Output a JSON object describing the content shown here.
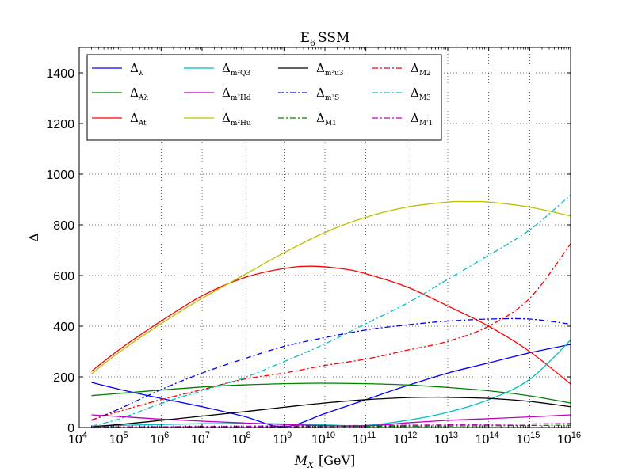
{
  "chart_data": {
    "type": "line",
    "title": "E6 SSM",
    "title_main": "E",
    "title_sub": "6",
    "title_rest": "SSM",
    "xlabel_main": "M",
    "xlabel_sub": "X",
    "xlabel_rest": "[GeV]",
    "ylabel": "Δ",
    "x_scale": "log10",
    "xlim": [
      10000.0,
      1e+16
    ],
    "ylim": [
      0,
      1500
    ],
    "x_ticks": [
      {
        "exp": "4",
        "value": 10000.0
      },
      {
        "exp": "5",
        "value": 100000.0
      },
      {
        "exp": "6",
        "value": 1000000.0
      },
      {
        "exp": "7",
        "value": 10000000.0
      },
      {
        "exp": "8",
        "value": 100000000.0
      },
      {
        "exp": "9",
        "value": 1000000000.0
      },
      {
        "exp": "10",
        "value": 10000000000.0
      },
      {
        "exp": "11",
        "value": 100000000000.0
      },
      {
        "exp": "12",
        "value": 1000000000000.0
      },
      {
        "exp": "13",
        "value": 10000000000000.0
      },
      {
        "exp": "14",
        "value": 100000000000000.0
      },
      {
        "exp": "15",
        "value": 1000000000000000.0
      },
      {
        "exp": "16",
        "value": 1e+16
      }
    ],
    "x_tick_base": "10",
    "y_ticks": [
      "0",
      "200",
      "400",
      "600",
      "800",
      "1000",
      "1200",
      "1400"
    ],
    "grid": true,
    "legend_position": "top-left",
    "series": [
      {
        "name": "Δλ",
        "label_main": "Δ",
        "label_sub": "λ",
        "color": "#0000ff",
        "dash": "solid",
        "x": [
          4.3,
          5,
          6,
          7,
          8,
          9,
          10,
          11,
          12,
          13,
          14,
          15,
          16
        ],
        "y": [
          178,
          150,
          115,
          82,
          45,
          3,
          55,
          110,
          165,
          215,
          255,
          295,
          328
        ]
      },
      {
        "name": "ΔAλ",
        "label_main": "Δ",
        "label_sub": "Aλ",
        "color": "#008000",
        "dash": "solid",
        "x": [
          4.3,
          5,
          6,
          7,
          8,
          9,
          10,
          11,
          12,
          13,
          14,
          15,
          16
        ],
        "y": [
          126,
          135,
          148,
          160,
          168,
          173,
          175,
          173,
          168,
          158,
          145,
          125,
          97
        ]
      },
      {
        "name": "ΔAt",
        "label_main": "Δ",
        "label_sub": "At",
        "color": "#ff0000",
        "dash": "solid",
        "x": [
          4.3,
          5,
          6,
          7,
          8,
          9,
          9.7,
          10.5,
          11,
          12,
          13,
          14,
          15,
          16
        ],
        "y": [
          222,
          310,
          420,
          520,
          590,
          628,
          637,
          625,
          607,
          555,
          480,
          400,
          300,
          172
        ]
      },
      {
        "name": "Δm2Q3",
        "label_main": "Δ",
        "label_sub": "m²Q3",
        "color": "#00bfbf",
        "dash": "solid",
        "x": [
          4.3,
          5,
          6,
          7,
          8,
          9,
          10,
          11,
          12,
          13,
          14,
          15,
          16
        ],
        "y": [
          5,
          8,
          12,
          15,
          16,
          14,
          10,
          8,
          28,
          60,
          110,
          190,
          345
        ]
      },
      {
        "name": "Δm2Hd",
        "label_main": "Δ",
        "label_sub": "m²Hd",
        "color": "#bf00bf",
        "dash": "solid",
        "x": [
          4.3,
          5,
          6,
          7,
          8,
          9,
          10,
          11,
          12,
          13,
          14,
          15,
          16
        ],
        "y": [
          50,
          43,
          33,
          25,
          18,
          12,
          7,
          6,
          18,
          28,
          35,
          42,
          50
        ]
      },
      {
        "name": "Δm2Hu",
        "label_main": "Δ",
        "label_sub": "m²Hu",
        "color": "#bfbf00",
        "dash": "solid",
        "x": [
          4.3,
          5,
          6,
          7,
          8,
          9,
          10,
          11,
          12,
          13,
          13.5,
          14,
          15,
          16
        ],
        "y": [
          212,
          300,
          410,
          510,
          600,
          690,
          770,
          830,
          870,
          890,
          892,
          890,
          870,
          835
        ]
      },
      {
        "name": "Δm2u3",
        "label_main": "Δ",
        "label_sub": "m²u3",
        "color": "#000000",
        "dash": "solid",
        "x": [
          4.3,
          5,
          6,
          7,
          8,
          9,
          10,
          11,
          12,
          12.7,
          13,
          14,
          15,
          16
        ],
        "y": [
          3,
          12,
          28,
          45,
          62,
          80,
          97,
          110,
          118,
          120,
          119,
          115,
          103,
          82
        ]
      },
      {
        "name": "Δm2S",
        "label_main": "Δ",
        "label_sub": "m²S",
        "color": "#0000ff",
        "dash": "dashdot",
        "x": [
          4.3,
          5,
          6,
          7,
          8,
          9,
          10,
          11,
          12,
          13,
          14,
          15,
          16
        ],
        "y": [
          28,
          75,
          150,
          215,
          270,
          320,
          355,
          385,
          405,
          420,
          428,
          428,
          408
        ]
      },
      {
        "name": "ΔM1",
        "label_main": "Δ",
        "label_sub": "M1",
        "color": "#008000",
        "dash": "dashdot",
        "x": [
          4.3,
          6,
          8,
          10,
          12,
          14,
          16
        ],
        "y": [
          1,
          2,
          3,
          4,
          5,
          7,
          9
        ]
      },
      {
        "name": "ΔM2",
        "label_main": "Δ",
        "label_sub": "M2",
        "color": "#ff0000",
        "dash": "dashdot",
        "x": [
          4.3,
          5,
          6,
          7,
          8,
          9,
          10,
          11,
          12,
          13,
          14,
          15,
          16
        ],
        "y": [
          30,
          65,
          110,
          150,
          190,
          215,
          245,
          270,
          305,
          340,
          400,
          510,
          725
        ]
      },
      {
        "name": "ΔM3",
        "label_main": "Δ",
        "label_sub": "M3",
        "color": "#00bfbf",
        "dash": "dashdot",
        "x": [
          4.3,
          5,
          6,
          7,
          8,
          9,
          10,
          11,
          12,
          13,
          14,
          15,
          16
        ],
        "y": [
          5,
          35,
          95,
          145,
          195,
          260,
          330,
          410,
          490,
          585,
          680,
          780,
          918
        ]
      },
      {
        "name": "ΔM'1",
        "label_main": "Δ",
        "label_sub": "M'1",
        "color": "#bf00bf",
        "dash": "dashdot",
        "x": [
          4.3,
          6,
          8,
          10,
          12,
          14,
          16
        ],
        "y": [
          2,
          3,
          5,
          7,
          9,
          12,
          16
        ]
      }
    ]
  }
}
